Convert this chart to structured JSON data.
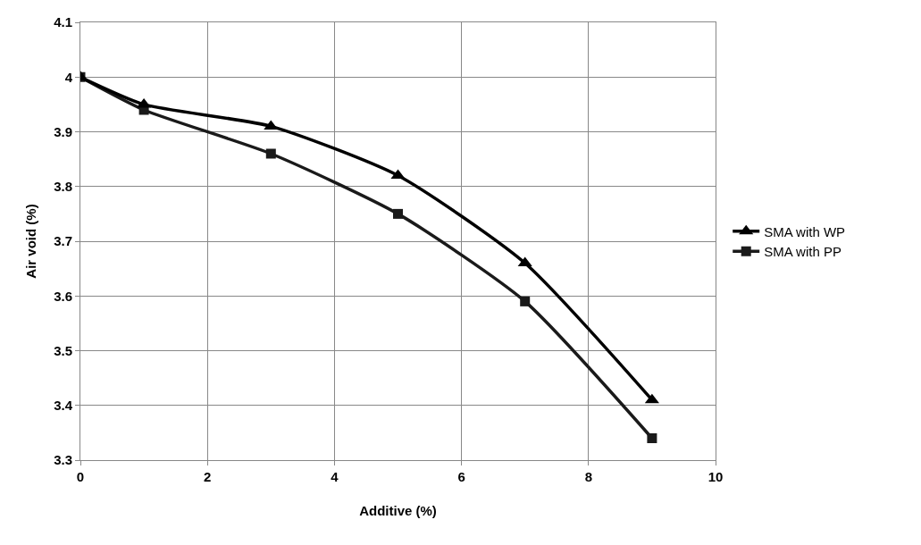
{
  "chart_data": {
    "type": "line",
    "xlabel": "Additive (%)",
    "ylabel": "Air void (%)",
    "x": [
      0,
      1,
      3,
      5,
      7,
      9
    ],
    "series": [
      {
        "name": "SMA with WP",
        "color": "#000000",
        "values": [
          4.0,
          3.95,
          3.91,
          3.82,
          3.66,
          3.41
        ],
        "marker": "triangle"
      },
      {
        "name": "SMA with PP",
        "color": "#1a1a1a",
        "values": [
          4.0,
          3.94,
          3.86,
          3.75,
          3.59,
          3.34
        ],
        "marker": "square"
      }
    ],
    "xlim": [
      0,
      10
    ],
    "xticks": [
      0,
      2,
      4,
      6,
      8,
      10
    ],
    "ylim": [
      3.3,
      4.1
    ],
    "yticks": [
      {
        "value": 3.3,
        "label": "3.3"
      },
      {
        "value": 3.4,
        "label": "3.4"
      },
      {
        "value": 3.5,
        "label": "3.5"
      },
      {
        "value": 3.6,
        "label": "3.6"
      },
      {
        "value": 3.7,
        "label": "3.7"
      },
      {
        "value": 3.8,
        "label": "3.8"
      },
      {
        "value": 3.9,
        "label": "3.9"
      },
      {
        "value": 4.0,
        "label": "4"
      },
      {
        "value": 4.1,
        "label": "4.1"
      }
    ],
    "grid": true,
    "legend": "right",
    "line_style": "solid"
  }
}
